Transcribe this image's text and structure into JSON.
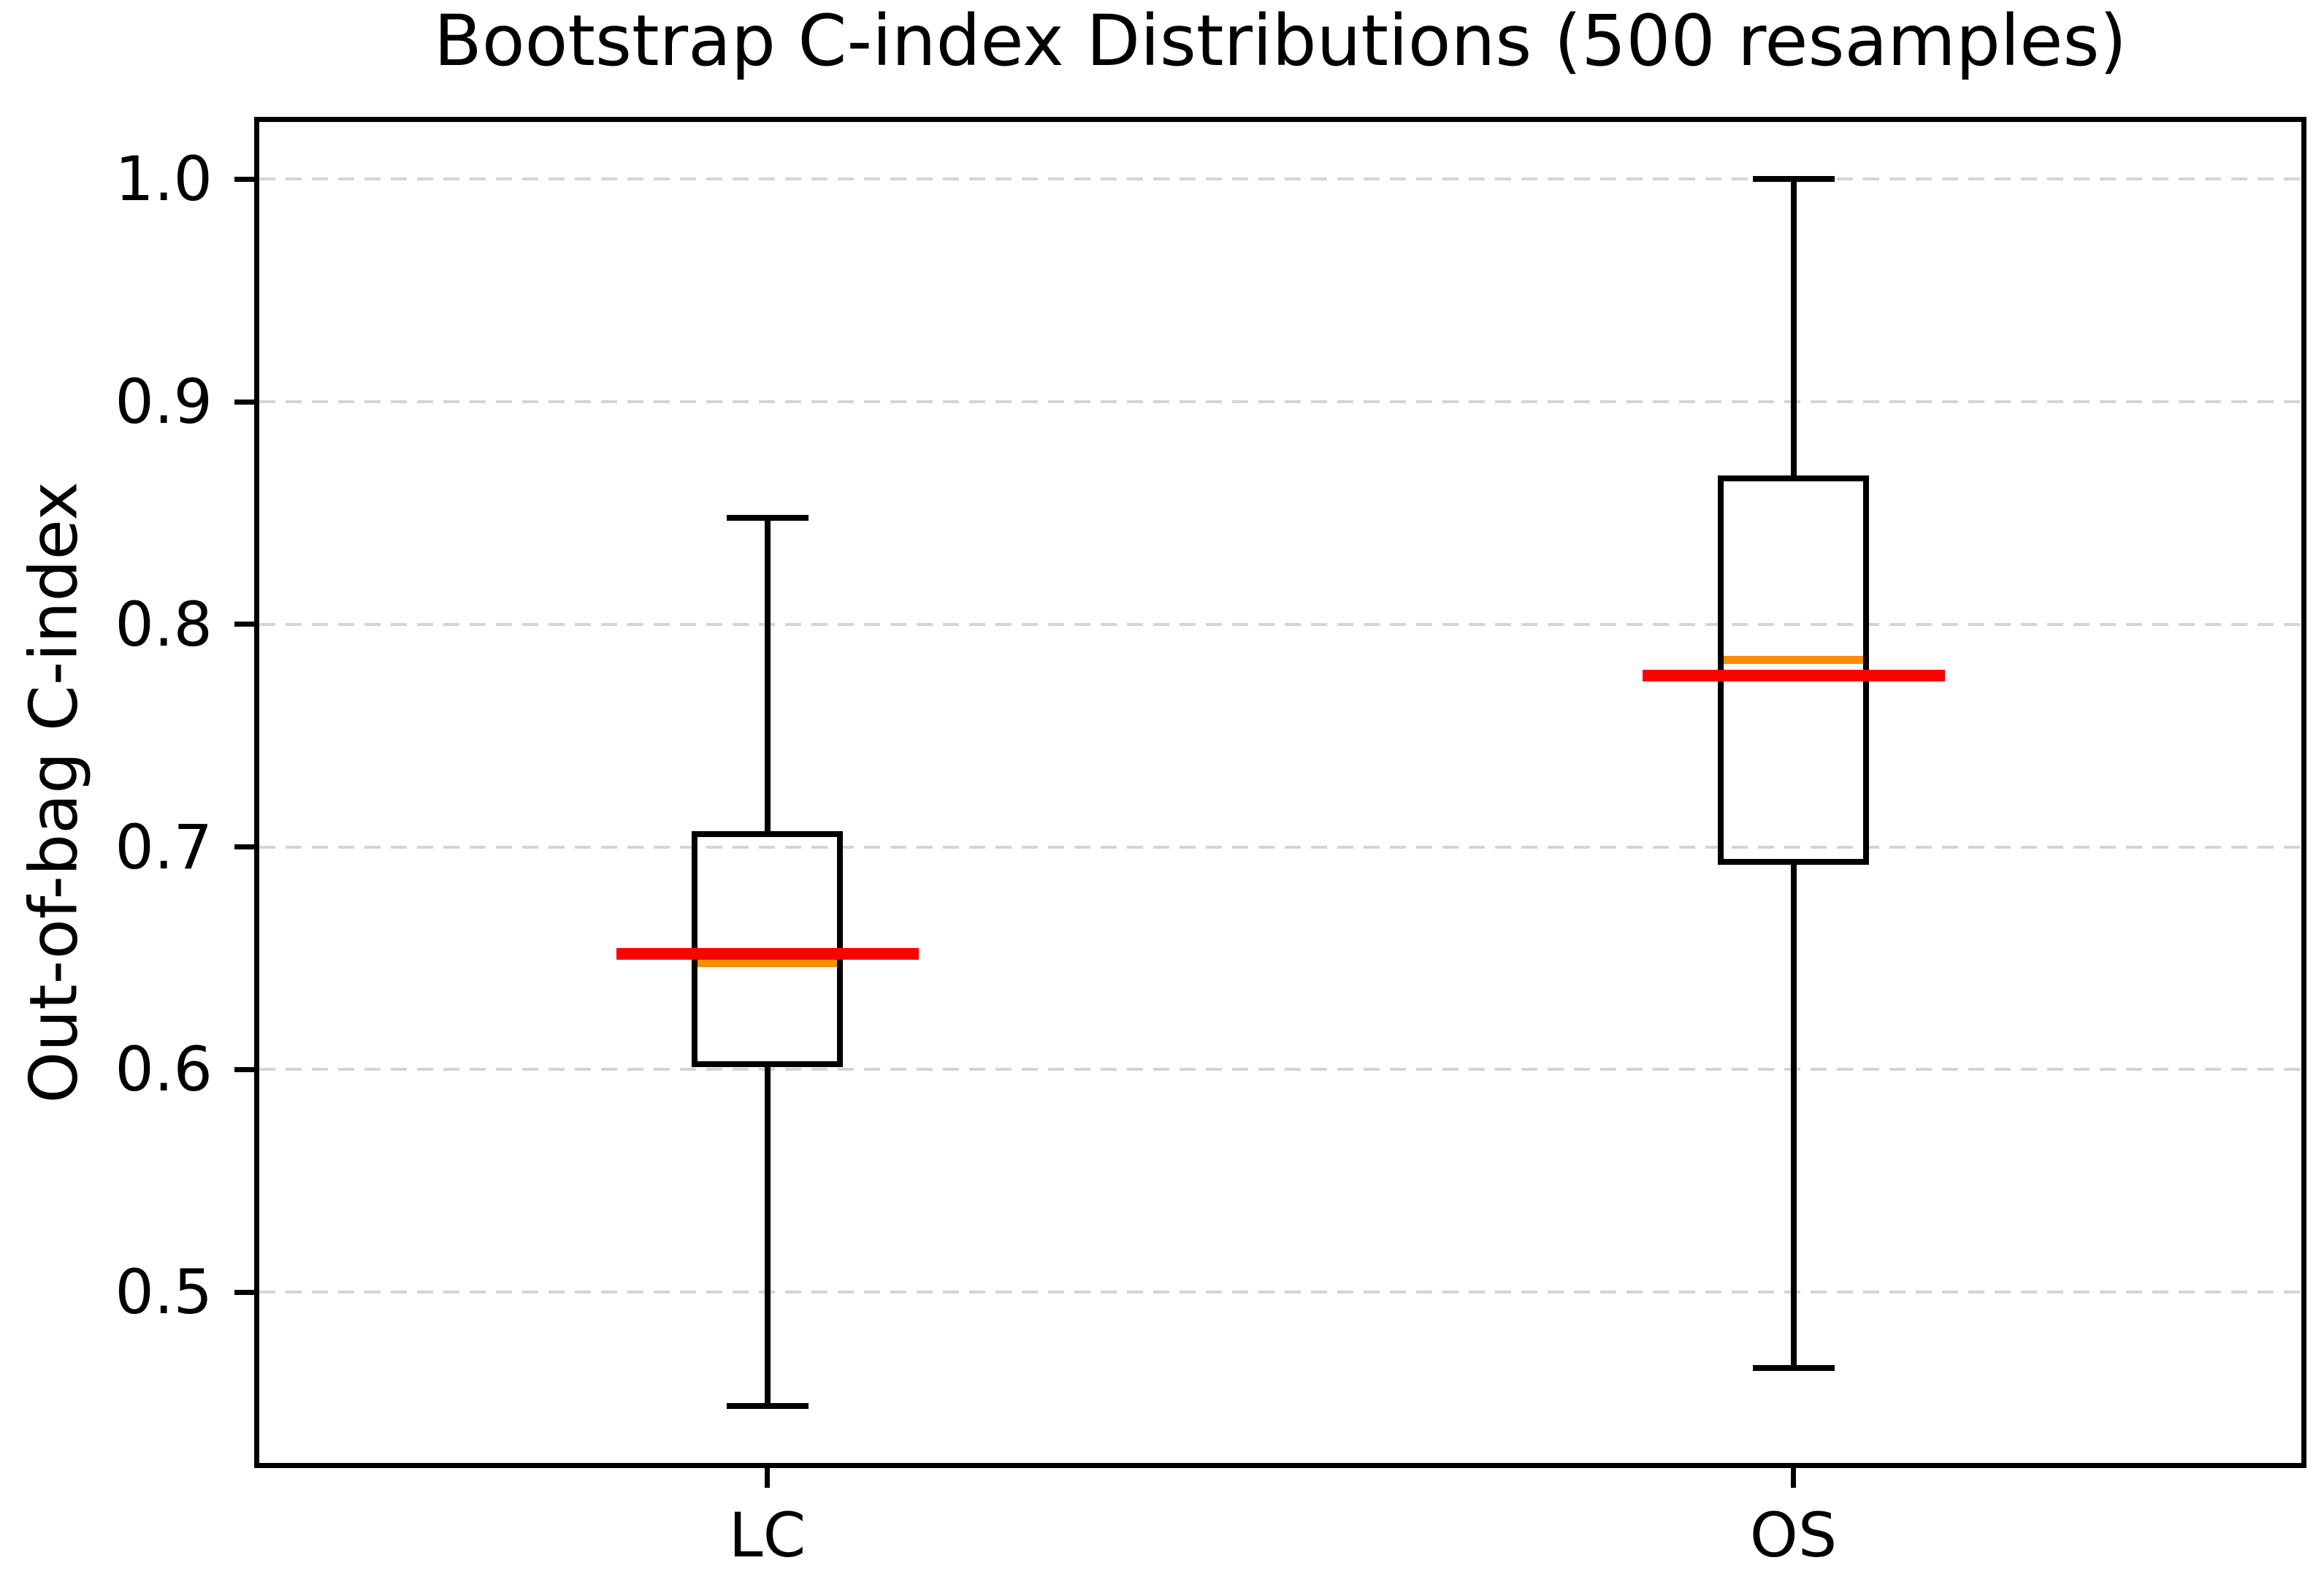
{
  "chart_data": {
    "type": "box",
    "title": "Bootstrap C-index Distributions (500 resamples)",
    "ylabel": "Out-of-bag C-index",
    "xlabel": "",
    "categories": [
      "LC",
      "OS"
    ],
    "yticks": [
      1.0,
      0.9,
      0.8,
      0.7,
      0.6,
      0.5
    ],
    "ylim": [
      0.421,
      1.028
    ],
    "grid": {
      "axis": "y",
      "style": "dashed"
    },
    "series": [
      {
        "label": "LC",
        "whisker_low": 0.449,
        "q1": 0.601,
        "median": 0.648,
        "q3": 0.707,
        "whisker_high": 0.848,
        "reference_line": 0.652
      },
      {
        "label": "OS",
        "whisker_low": 0.466,
        "q1": 0.692,
        "median": 0.784,
        "q3": 0.867,
        "whisker_high": 1.0,
        "reference_line": 0.777
      }
    ],
    "colors": {
      "box_edge": "#000000",
      "median": "#ff8c00",
      "reference_line": "#ff0000",
      "grid": "#d4d4d4",
      "text": "#000000",
      "background": "#ffffff"
    }
  }
}
